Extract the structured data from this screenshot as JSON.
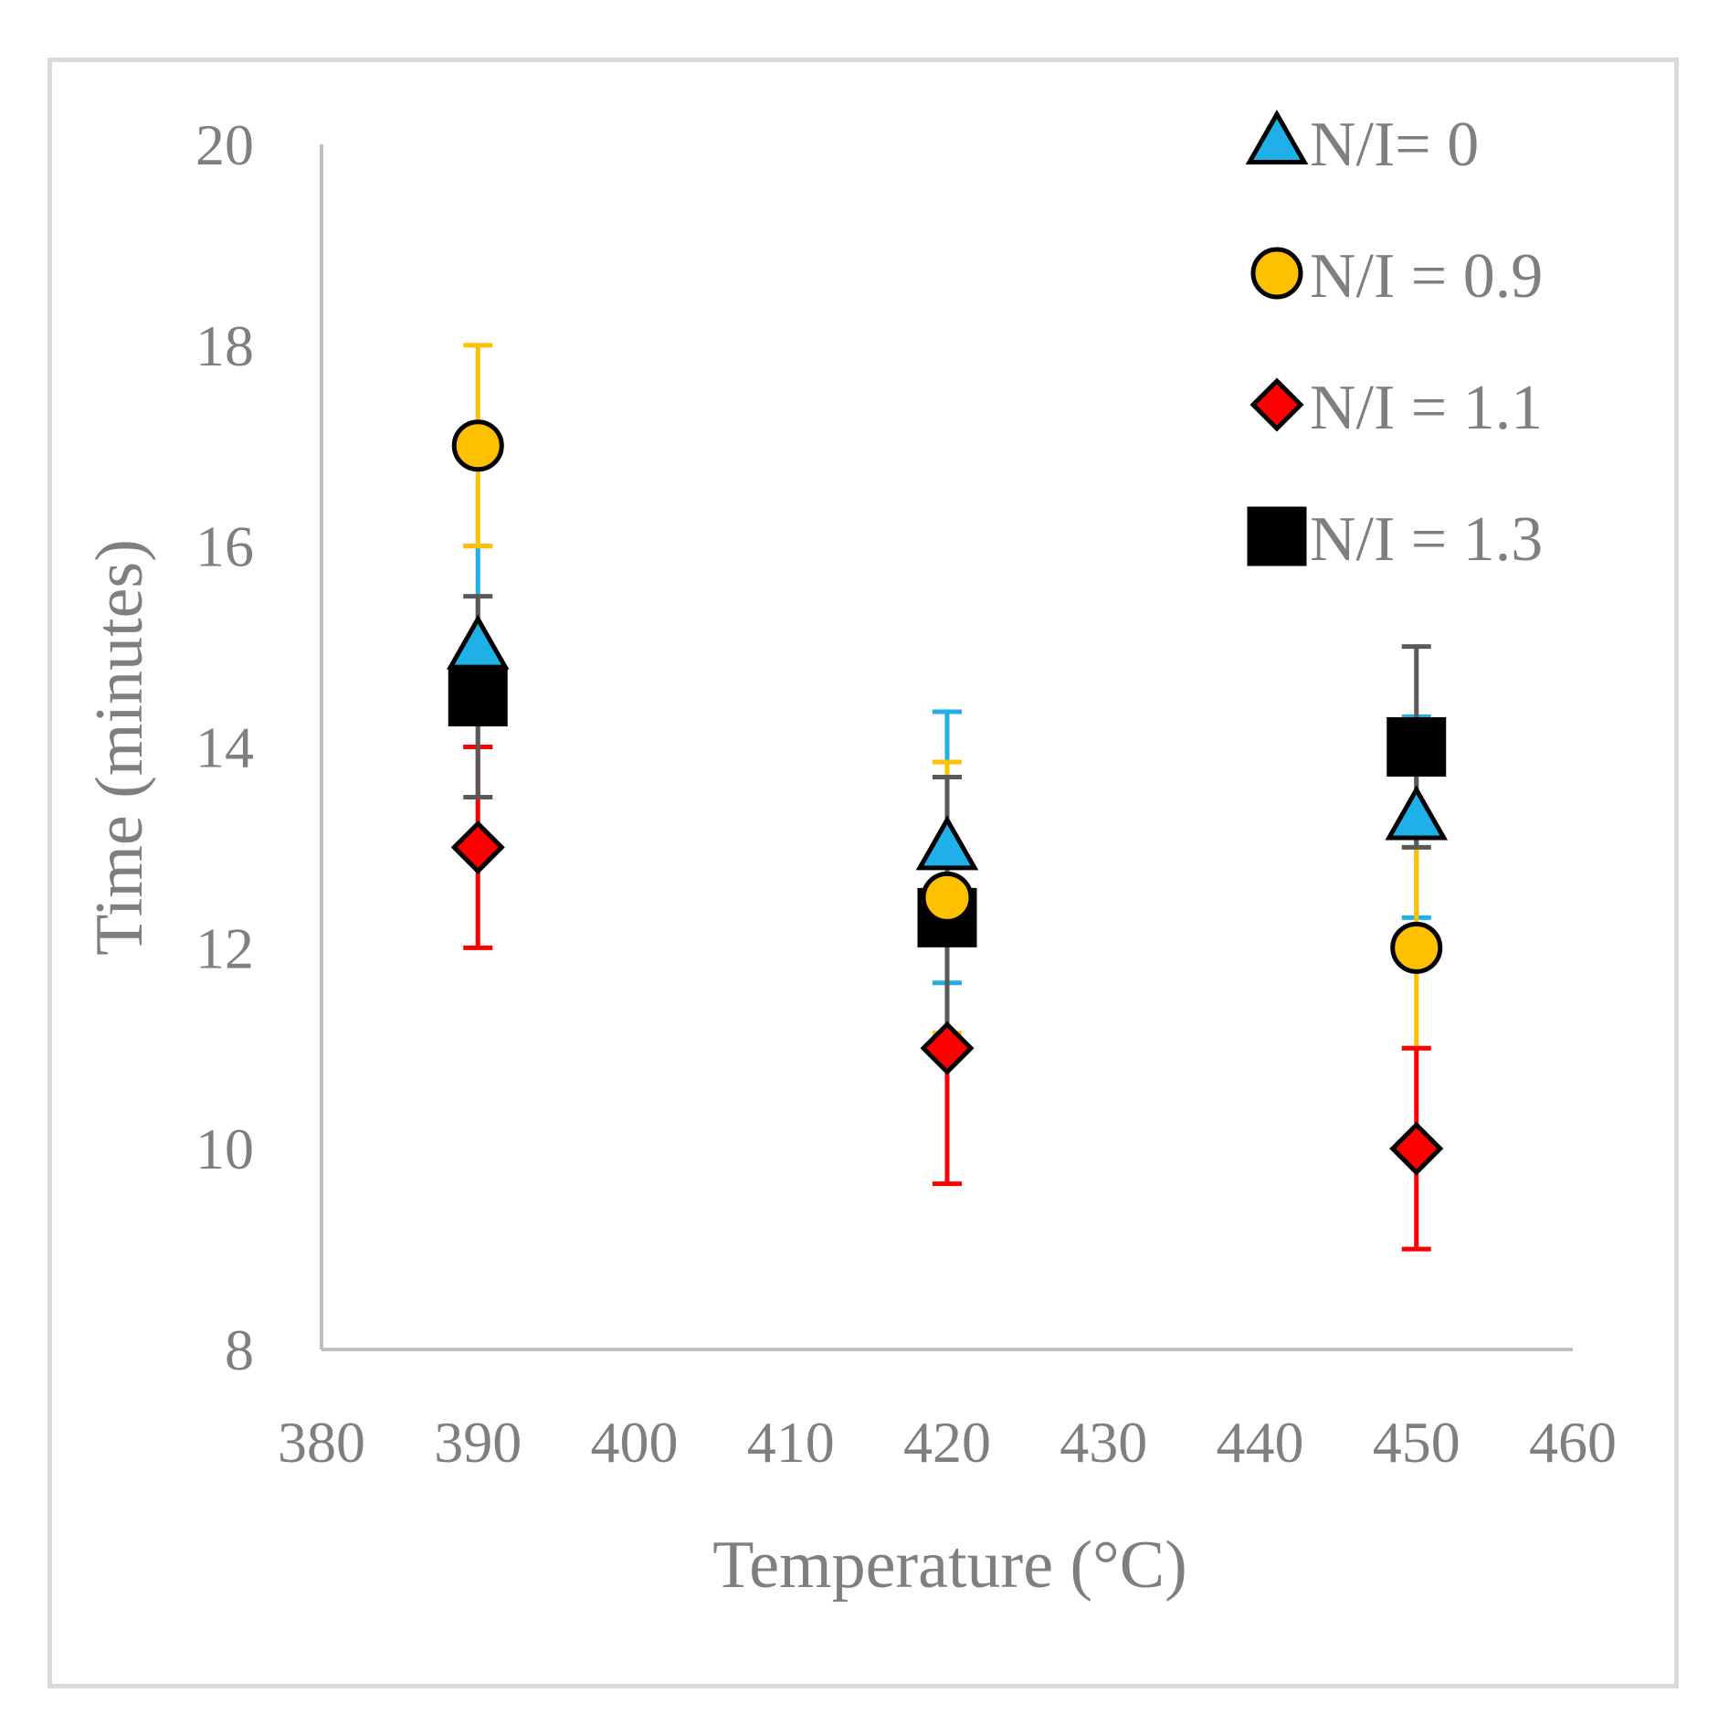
{
  "chart_data": {
    "type": "scatter",
    "title": "",
    "xlabel": "Temperature (°C)",
    "ylabel": "Time (minutes)",
    "xlim": [
      380,
      460
    ],
    "ylim": [
      8,
      20
    ],
    "xticks": [
      380,
      390,
      400,
      410,
      420,
      430,
      440,
      450,
      460
    ],
    "yticks": [
      8,
      10,
      12,
      14,
      16,
      18,
      20
    ],
    "grid": false,
    "legend_position": "top-right",
    "series": [
      {
        "name": "N/I= 0",
        "marker": "triangle",
        "fill": "#1fb0e8",
        "error_color": "#1fb0e8",
        "x": [
          390,
          420,
          450
        ],
        "y": [
          15,
          13,
          13.3
        ],
        "err": [
          1,
          1.35,
          1
        ]
      },
      {
        "name": "N/I = 0.9",
        "marker": "circle",
        "fill": "#ffc000",
        "error_color": "#ffc000",
        "x": [
          390,
          420,
          450
        ],
        "y": [
          17,
          12.5,
          12
        ],
        "err": [
          1,
          1.35,
          1
        ]
      },
      {
        "name": "N/I = 1.1",
        "marker": "diamond",
        "fill": "#ff0000",
        "error_color": "#ff0000",
        "x": [
          390,
          420,
          450
        ],
        "y": [
          13,
          11,
          10
        ],
        "err": [
          1,
          1.35,
          1
        ]
      },
      {
        "name": "N/I = 1.3",
        "marker": "square",
        "fill": "#000000",
        "error_color": "#595959",
        "x": [
          390,
          420,
          450
        ],
        "y": [
          14.5,
          12.3,
          14
        ],
        "err": [
          1,
          1.4,
          1
        ]
      }
    ]
  }
}
